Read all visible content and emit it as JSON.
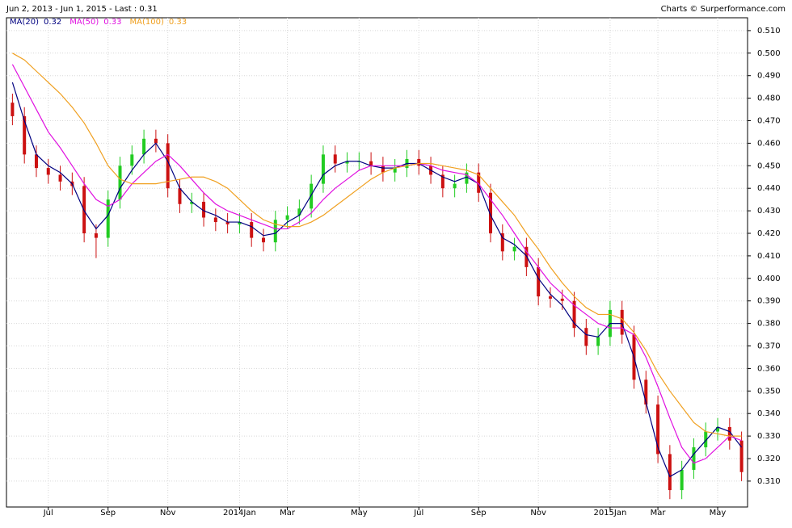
{
  "chart_data": {
    "type": "candlestick",
    "title": "Jun 2, 2013 - Jun 1, 2015 - Last : 0.31",
    "source": "Charts © Surperformance.com",
    "categories": [
      null,
      null,
      null,
      "Jul",
      null,
      null,
      null,
      null,
      "Sep",
      null,
      null,
      null,
      null,
      "Nov",
      null,
      null,
      null,
      null,
      null,
      "2014Jan",
      null,
      null,
      null,
      "Mar",
      null,
      null,
      null,
      null,
      null,
      "May",
      null,
      null,
      null,
      null,
      "Jul",
      null,
      null,
      null,
      null,
      "Sep",
      null,
      null,
      null,
      null,
      "Nov",
      null,
      null,
      null,
      null,
      null,
      "2015Jan",
      null,
      null,
      null,
      "Mar",
      null,
      null,
      null,
      null,
      "May",
      null,
      null
    ],
    "open": [
      0.478,
      0.472,
      0.455,
      0.449,
      0.446,
      0.443,
      0.441,
      0.42,
      0.418,
      0.435,
      0.45,
      0.455,
      0.462,
      0.46,
      0.44,
      0.433,
      0.434,
      0.427,
      0.425,
      0.424,
      0.425,
      0.418,
      0.416,
      0.426,
      0.428,
      0.431,
      0.442,
      0.455,
      0.451,
      0.452,
      0.452,
      0.45,
      0.447,
      0.449,
      0.453,
      0.45,
      0.446,
      0.44,
      0.442,
      0.447,
      0.438,
      0.42,
      0.412,
      0.414,
      0.405,
      0.392,
      0.391,
      0.39,
      0.378,
      0.37,
      0.374,
      0.386,
      0.375,
      0.355,
      0.344,
      0.322,
      0.306,
      0.315,
      0.325,
      0.332,
      0.334,
      0.328
    ],
    "high": [
      0.482,
      0.476,
      0.459,
      0.453,
      0.45,
      0.447,
      0.445,
      0.424,
      0.439,
      0.454,
      0.459,
      0.466,
      0.466,
      0.464,
      0.444,
      0.438,
      0.438,
      0.431,
      0.429,
      0.429,
      0.429,
      0.422,
      0.43,
      0.432,
      0.435,
      0.446,
      0.459,
      0.459,
      0.456,
      0.456,
      0.456,
      0.454,
      0.453,
      0.457,
      0.457,
      0.454,
      0.45,
      0.446,
      0.451,
      0.451,
      0.442,
      0.424,
      0.418,
      0.418,
      0.409,
      0.396,
      0.395,
      0.394,
      0.382,
      0.378,
      0.39,
      0.39,
      0.379,
      0.359,
      0.348,
      0.326,
      0.319,
      0.329,
      0.336,
      0.338,
      0.338,
      0.332
    ],
    "low": [
      0.468,
      0.451,
      0.445,
      0.442,
      0.439,
      0.437,
      0.416,
      0.409,
      0.414,
      0.431,
      0.446,
      0.451,
      0.456,
      0.436,
      0.429,
      0.429,
      0.423,
      0.421,
      0.42,
      0.42,
      0.414,
      0.412,
      0.412,
      0.422,
      0.424,
      0.427,
      0.438,
      0.447,
      0.447,
      0.448,
      0.446,
      0.443,
      0.443,
      0.445,
      0.446,
      0.442,
      0.436,
      0.436,
      0.438,
      0.434,
      0.416,
      0.408,
      0.408,
      0.401,
      0.388,
      0.387,
      0.386,
      0.374,
      0.366,
      0.366,
      0.37,
      0.371,
      0.351,
      0.34,
      0.318,
      0.302,
      0.302,
      0.311,
      0.321,
      0.328,
      0.324,
      0.31
    ],
    "close": [
      0.472,
      0.455,
      0.449,
      0.446,
      0.443,
      0.441,
      0.42,
      0.418,
      0.435,
      0.45,
      0.455,
      0.462,
      0.46,
      0.44,
      0.433,
      0.434,
      0.427,
      0.425,
      0.424,
      0.425,
      0.418,
      0.416,
      0.426,
      0.428,
      0.431,
      0.442,
      0.455,
      0.451,
      0.452,
      0.452,
      0.45,
      0.447,
      0.449,
      0.453,
      0.45,
      0.446,
      0.44,
      0.442,
      0.447,
      0.438,
      0.42,
      0.412,
      0.414,
      0.405,
      0.392,
      0.391,
      0.39,
      0.378,
      0.37,
      0.374,
      0.386,
      0.375,
      0.355,
      0.344,
      0.322,
      0.306,
      0.315,
      0.325,
      0.332,
      0.334,
      0.328,
      0.314
    ],
    "up_color": "#22cc22",
    "down_color": "#cc1111",
    "series": [
      {
        "name": "MA(20)",
        "last": 0.32,
        "color": "#000080",
        "values": [
          0.487,
          0.47,
          0.455,
          0.45,
          0.447,
          0.442,
          0.43,
          0.422,
          0.428,
          0.44,
          0.448,
          0.455,
          0.46,
          0.452,
          0.44,
          0.434,
          0.43,
          0.428,
          0.425,
          0.425,
          0.423,
          0.419,
          0.42,
          0.425,
          0.428,
          0.437,
          0.446,
          0.45,
          0.452,
          0.452,
          0.45,
          0.449,
          0.449,
          0.451,
          0.451,
          0.448,
          0.445,
          0.443,
          0.445,
          0.442,
          0.428,
          0.418,
          0.415,
          0.41,
          0.4,
          0.393,
          0.388,
          0.38,
          0.375,
          0.374,
          0.38,
          0.38,
          0.365,
          0.345,
          0.325,
          0.312,
          0.315,
          0.322,
          0.328,
          0.334,
          0.332,
          0.325
        ]
      },
      {
        "name": "MA(50)",
        "last": 0.33,
        "color": "#e010e0",
        "values": [
          0.495,
          0.485,
          0.475,
          0.465,
          0.458,
          0.45,
          0.442,
          0.435,
          0.432,
          0.435,
          0.442,
          0.447,
          0.452,
          0.455,
          0.45,
          0.444,
          0.438,
          0.433,
          0.43,
          0.428,
          0.426,
          0.424,
          0.422,
          0.422,
          0.425,
          0.429,
          0.435,
          0.44,
          0.444,
          0.448,
          0.45,
          0.45,
          0.45,
          0.45,
          0.451,
          0.45,
          0.448,
          0.447,
          0.446,
          0.442,
          0.435,
          0.428,
          0.42,
          0.412,
          0.405,
          0.398,
          0.393,
          0.388,
          0.384,
          0.38,
          0.378,
          0.378,
          0.375,
          0.365,
          0.352,
          0.338,
          0.325,
          0.318,
          0.32,
          0.325,
          0.33,
          0.328
        ]
      },
      {
        "name": "MA(100)",
        "last": 0.33,
        "color": "#f0a020",
        "values": [
          0.5,
          0.497,
          0.492,
          0.487,
          0.482,
          0.476,
          0.469,
          0.46,
          0.45,
          0.444,
          0.442,
          0.442,
          0.442,
          0.443,
          0.444,
          0.445,
          0.445,
          0.443,
          0.44,
          0.435,
          0.43,
          0.426,
          0.424,
          0.423,
          0.423,
          0.425,
          0.428,
          0.432,
          0.436,
          0.44,
          0.444,
          0.447,
          0.449,
          0.45,
          0.451,
          0.451,
          0.45,
          0.449,
          0.448,
          0.446,
          0.44,
          0.434,
          0.428,
          0.42,
          0.413,
          0.405,
          0.398,
          0.392,
          0.387,
          0.384,
          0.384,
          0.382,
          0.376,
          0.368,
          0.358,
          0.35,
          0.343,
          0.336,
          0.332,
          0.331,
          0.33,
          0.33
        ]
      }
    ],
    "ylim": [
      0.2985,
      0.5157
    ],
    "yticks": [
      {
        "value": 0.31,
        "label": "0.310"
      },
      {
        "value": 0.32,
        "label": "0.320"
      },
      {
        "value": 0.33,
        "label": "0.330"
      },
      {
        "value": 0.34,
        "label": "0.340"
      },
      {
        "value": 0.35,
        "label": "0.350"
      },
      {
        "value": 0.36,
        "label": "0.360"
      },
      {
        "value": 0.37,
        "label": "0.370"
      },
      {
        "value": 0.38,
        "label": "0.380"
      },
      {
        "value": 0.39,
        "label": "0.390"
      },
      {
        "value": 0.4,
        "label": "0.400"
      },
      {
        "value": 0.41,
        "label": "0.410"
      },
      {
        "value": 0.42,
        "label": "0.420"
      },
      {
        "value": 0.43,
        "label": "0.430"
      },
      {
        "value": 0.44,
        "label": "0.440"
      },
      {
        "value": 0.45,
        "label": "0.450"
      },
      {
        "value": 0.46,
        "label": "0.460"
      },
      {
        "value": 0.47,
        "label": "0.470"
      },
      {
        "value": 0.48,
        "label": "0.480"
      },
      {
        "value": 0.49,
        "label": "0.490"
      },
      {
        "value": 0.5,
        "label": "0.500"
      },
      {
        "value": 0.51,
        "label": "0.510"
      }
    ],
    "grid": true,
    "legend": "top-left"
  }
}
